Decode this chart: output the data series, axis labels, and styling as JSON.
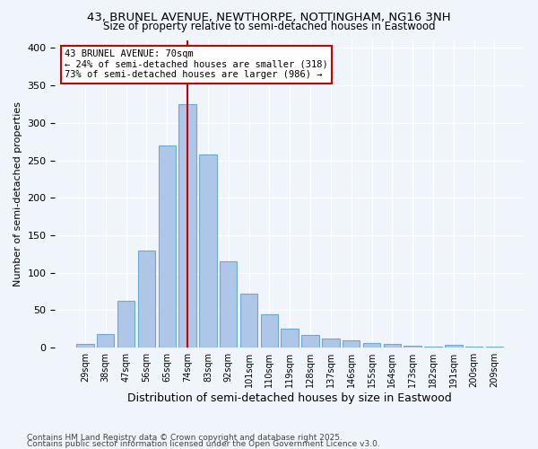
{
  "title1": "43, BRUNEL AVENUE, NEWTHORPE, NOTTINGHAM, NG16 3NH",
  "title2": "Size of property relative to semi-detached houses in Eastwood",
  "xlabel": "Distribution of semi-detached houses by size in Eastwood",
  "ylabel": "Number of semi-detached properties",
  "categories": [
    "29sqm",
    "38sqm",
    "47sqm",
    "56sqm",
    "65sqm",
    "74sqm",
    "83sqm",
    "92sqm",
    "101sqm",
    "110sqm",
    "119sqm",
    "128sqm",
    "137sqm",
    "146sqm",
    "155sqm",
    "164sqm",
    "173sqm",
    "182sqm",
    "191sqm",
    "200sqm",
    "209sqm"
  ],
  "values": [
    5,
    18,
    62,
    130,
    270,
    325,
    258,
    115,
    72,
    44,
    25,
    17,
    12,
    10,
    6,
    5,
    3,
    1,
    4,
    2,
    1
  ],
  "bar_color": "#aec6e8",
  "bar_edgecolor": "#6aaad4",
  "property_value_sqm": 70,
  "property_bin_index": 5,
  "annotation_title": "43 BRUNEL AVENUE: 70sqm",
  "annotation_line1": "← 24% of semi-detached houses are smaller (318)",
  "annotation_line2": "73% of semi-detached houses are larger (986) →",
  "vline_color": "#cc0000",
  "annotation_box_edgecolor": "#cc0000",
  "footer1": "Contains HM Land Registry data © Crown copyright and database right 2025.",
  "footer2": "Contains public sector information licensed under the Open Government Licence v3.0.",
  "bg_color": "#f0f4fb",
  "plot_bg_color": "#f0f4fb",
  "ylim": [
    0,
    410
  ],
  "grid_color": "#ffffff"
}
